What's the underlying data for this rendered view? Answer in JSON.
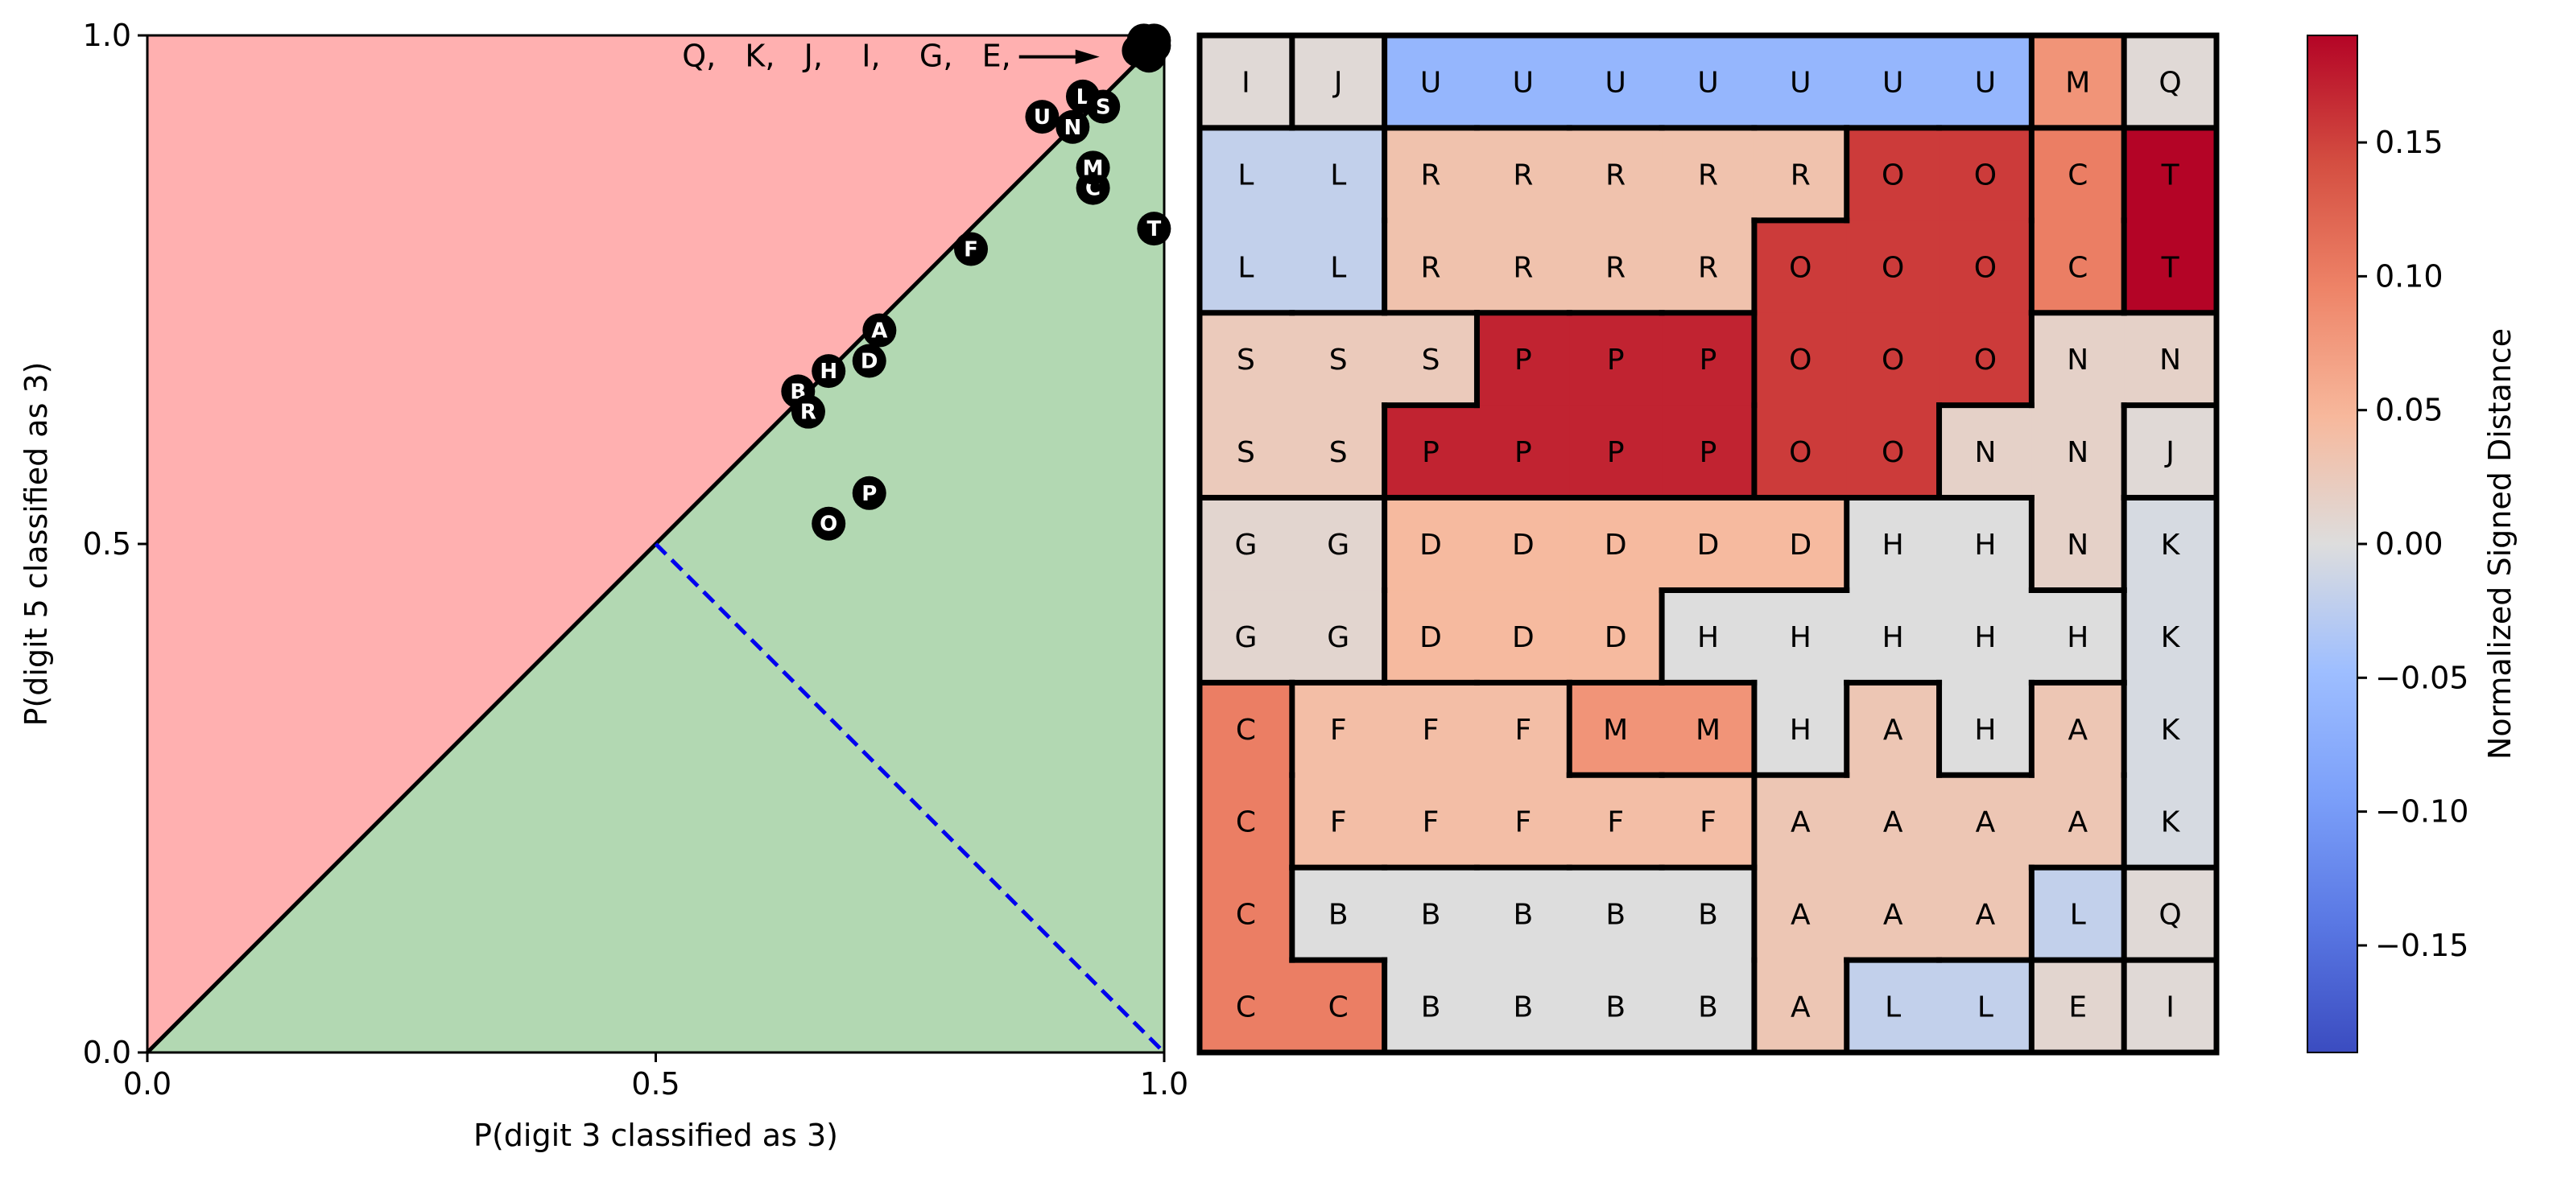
{
  "chart_data": [
    {
      "type": "scatter",
      "title": "",
      "xlabel": "P(digit 3 classified as 3)",
      "ylabel": "P(digit 5 classified as 3)",
      "xlim": [
        0,
        1
      ],
      "ylim": [
        0,
        1
      ],
      "xticks": [
        "0.0",
        "0.5",
        "1.0"
      ],
      "yticks": [
        "0.0",
        "0.5",
        "1.0"
      ],
      "regions": {
        "above_diagonal_color": "#ffb0b0",
        "below_diagonal_color": "#b2d8b2"
      },
      "reference_line": {
        "from": [
          0.5,
          0.5
        ],
        "to": [
          1.0,
          0.0
        ],
        "style": "dashed",
        "color": "#0000ee"
      },
      "cluster_annotation": {
        "text": "Q,   K,   J,    I,    G,   E,",
        "point": [
          0.98,
          0.99
        ]
      },
      "points": [
        {
          "label": "A",
          "x": 0.72,
          "y": 0.71
        },
        {
          "label": "B",
          "x": 0.64,
          "y": 0.65
        },
        {
          "label": "C",
          "x": 0.93,
          "y": 0.85
        },
        {
          "label": "D",
          "x": 0.71,
          "y": 0.68
        },
        {
          "label": "F",
          "x": 0.81,
          "y": 0.79
        },
        {
          "label": "H",
          "x": 0.67,
          "y": 0.67
        },
        {
          "label": "L",
          "x": 0.92,
          "y": 0.94
        },
        {
          "label": "M",
          "x": 0.93,
          "y": 0.87
        },
        {
          "label": "N",
          "x": 0.91,
          "y": 0.91
        },
        {
          "label": "O",
          "x": 0.67,
          "y": 0.52
        },
        {
          "label": "P",
          "x": 0.71,
          "y": 0.55
        },
        {
          "label": "R",
          "x": 0.65,
          "y": 0.63
        },
        {
          "label": "S",
          "x": 0.94,
          "y": 0.93
        },
        {
          "label": "T",
          "x": 0.99,
          "y": 0.81
        },
        {
          "label": "U",
          "x": 0.88,
          "y": 0.92
        },
        {
          "label": "",
          "x": 0.98,
          "y": 0.99
        },
        {
          "label": "",
          "x": 0.99,
          "y": 0.995
        },
        {
          "label": "",
          "x": 0.975,
          "y": 0.985
        },
        {
          "label": "",
          "x": 0.985,
          "y": 0.98
        },
        {
          "label": "",
          "x": 0.99,
          "y": 0.99
        },
        {
          "label": "",
          "x": 0.98,
          "y": 0.995
        }
      ]
    },
    {
      "type": "heatmap",
      "title": "",
      "rows": 11,
      "cols": 11,
      "grid": [
        [
          "I",
          "J",
          "U",
          "U",
          "U",
          "U",
          "U",
          "U",
          "U",
          "M",
          "Q"
        ],
        [
          "L",
          "L",
          "R",
          "R",
          "R",
          "R",
          "R",
          "O",
          "O",
          "C",
          "T"
        ],
        [
          "L",
          "L",
          "R",
          "R",
          "R",
          "R",
          "O",
          "O",
          "O",
          "C",
          "T"
        ],
        [
          "S",
          "S",
          "S",
          "P",
          "P",
          "P",
          "O",
          "O",
          "O",
          "N",
          "N"
        ],
        [
          "S",
          "S",
          "P",
          "P",
          "P",
          "P",
          "O",
          "O",
          "N",
          "N",
          "J"
        ],
        [
          "G",
          "G",
          "D",
          "D",
          "D",
          "D",
          "D",
          "H",
          "H",
          "N",
          "K"
        ],
        [
          "G",
          "G",
          "D",
          "D",
          "D",
          "H",
          "H",
          "H",
          "H",
          "H",
          "K"
        ],
        [
          "C",
          "F",
          "F",
          "F",
          "M",
          "M",
          "H",
          "A",
          "H",
          "A",
          "K"
        ],
        [
          "C",
          "F",
          "F",
          "F",
          "F",
          "F",
          "A",
          "A",
          "A",
          "A",
          "K"
        ],
        [
          "C",
          "B",
          "B",
          "B",
          "B",
          "B",
          "A",
          "A",
          "A",
          "L",
          "Q"
        ],
        [
          "C",
          "C",
          "B",
          "B",
          "B",
          "B",
          "A",
          "L",
          "L",
          "E",
          "I"
        ]
      ],
      "region_values": {
        "A": 0.03,
        "B": 0.0,
        "C": 0.1,
        "D": 0.045,
        "E": 0.01,
        "F": 0.04,
        "G": 0.01,
        "H": 0.0,
        "I": 0.005,
        "J": 0.005,
        "K": -0.005,
        "L": -0.02,
        "M": 0.08,
        "N": 0.015,
        "O": 0.155,
        "P": 0.17,
        "Q": 0.005,
        "R": 0.035,
        "S": 0.025,
        "T": 0.19,
        "U": -0.06
      },
      "colorbar": {
        "label": "Normalized Signed Distance",
        "range": [
          -0.19,
          0.19
        ],
        "colormap": "coolwarm",
        "ticks": [
          -0.15,
          -0.1,
          -0.05,
          0.0,
          0.05,
          0.1,
          0.15
        ],
        "tick_labels": [
          "−0.15",
          "−0.10",
          "−0.05",
          "0.00",
          "0.05",
          "0.10",
          "0.15"
        ]
      }
    }
  ]
}
